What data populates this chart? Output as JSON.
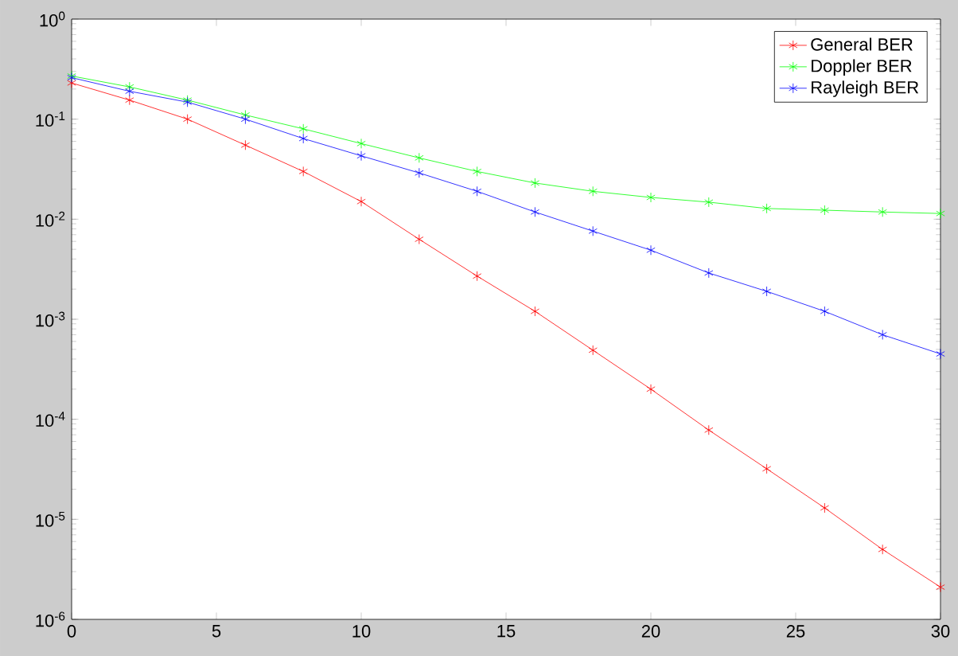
{
  "chart_data": {
    "type": "line",
    "log": "y",
    "legend": "top right",
    "marker": "cross",
    "line_style": "solid",
    "grid": false,
    "x": [
      0,
      2,
      4,
      6,
      8,
      10,
      12,
      14,
      16,
      18,
      20,
      22,
      24,
      26,
      28,
      30
    ],
    "xlim": [
      0,
      30
    ],
    "xticks": [
      0,
      5,
      10,
      15,
      20,
      25,
      30
    ],
    "ylim": [
      1e-06,
      1
    ],
    "yticks": [
      {
        "value": 1e-06,
        "label": "10$^{-6}$"
      },
      {
        "value": 1e-05,
        "label": "10$^{-5}$"
      },
      {
        "value": 0.0001,
        "label": "10$^{-4}$"
      },
      {
        "value": 0.001,
        "label": "10$^{-3}$"
      },
      {
        "value": 0.01,
        "label": "10$^{-2}$"
      },
      {
        "value": 0.1,
        "label": "10$^{-1}$"
      },
      {
        "value": 1,
        "label": "10$^{0}$"
      }
    ],
    "series": [
      {
        "name": "General BER",
        "color": "#ff0000",
        "values": [
          0.23,
          0.155,
          0.1,
          0.055,
          0.03,
          0.015,
          0.0063,
          0.0027,
          0.0012,
          0.00049,
          0.0002,
          7.8e-05,
          3.2e-05,
          1.3e-05,
          5e-06,
          2.1e-06
        ]
      },
      {
        "name": "Doppler BER",
        "color": "#00ff00",
        "values": [
          0.27,
          0.21,
          0.155,
          0.11,
          0.08,
          0.057,
          0.041,
          0.03,
          0.023,
          0.019,
          0.0165,
          0.0148,
          0.0128,
          0.0123,
          0.0118,
          0.0114
        ]
      },
      {
        "name": "Rayleigh BER",
        "color": "#0000ff",
        "values": [
          0.26,
          0.19,
          0.148,
          0.1,
          0.064,
          0.043,
          0.029,
          0.019,
          0.0118,
          0.0076,
          0.0049,
          0.0029,
          0.0019,
          0.0012,
          0.0007,
          0.00045
        ]
      }
    ]
  }
}
